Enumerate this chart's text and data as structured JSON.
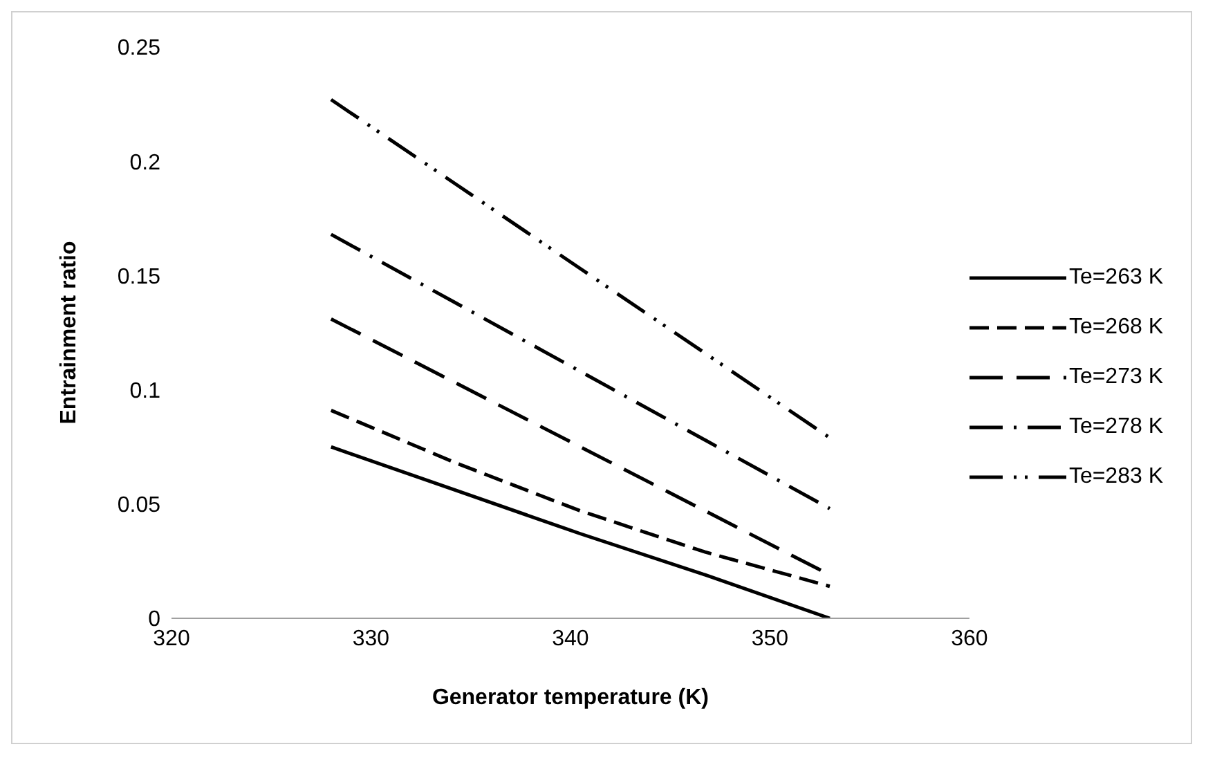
{
  "chart_data": {
    "type": "line",
    "xlabel": "Generator temperature (K)",
    "ylabel": "Entrainment ratio",
    "x": [
      328,
      334.25,
      340.5,
      346.75,
      353
    ],
    "series": [
      {
        "name": "Te=263 K",
        "color": "#000000",
        "line_style": "solid",
        "values": [
          0.075,
          0.056,
          0.037,
          0.019,
          0
        ]
      },
      {
        "name": "Te=268 K",
        "color": "#000000",
        "line_style": "dashed",
        "values": [
          0.091,
          0.068,
          0.047,
          0.029,
          0.014
        ]
      },
      {
        "name": "Te=273 K",
        "color": "#000000",
        "line_style": "dashed",
        "values": [
          0.131,
          0.103,
          0.075,
          0.047,
          0.019
        ]
      },
      {
        "name": "Te=278 K",
        "color": "#000000",
        "line_style": "dashed",
        "values": [
          0.168,
          0.138,
          0.108,
          0.078,
          0.048
        ]
      },
      {
        "name": "Te=283 K",
        "color": "#000000",
        "line_style": "dashed",
        "values": [
          0.227,
          0.19,
          0.153,
          0.116,
          0.079
        ]
      }
    ],
    "xlim": [
      320,
      360
    ],
    "xticks": [
      320,
      330,
      340,
      350,
      360
    ],
    "ylim": [
      0,
      0.25
    ],
    "yticks": [
      0,
      0.05,
      0.1,
      0.15,
      0.2,
      0.25
    ],
    "grid": false,
    "legend": "right",
    "marker": "none"
  }
}
